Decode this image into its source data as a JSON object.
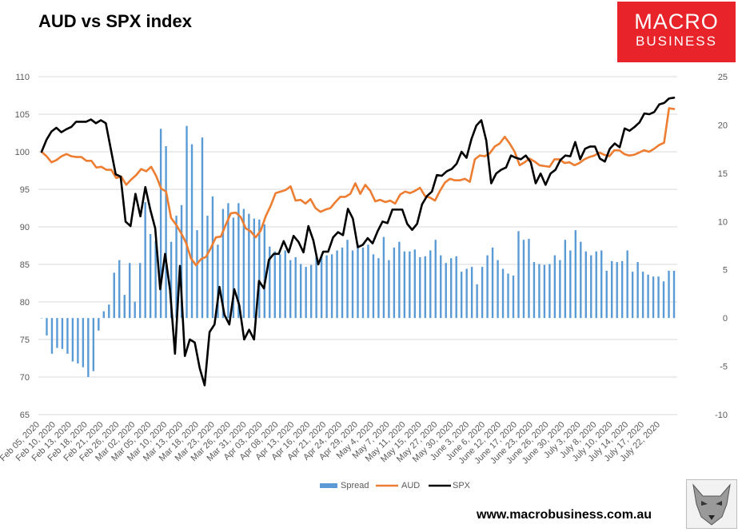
{
  "chart_data": {
    "type": "bar+line",
    "title": "AUD vs SPX index",
    "left_axis": {
      "min": 65,
      "max": 110,
      "ticks": [
        65,
        70,
        75,
        80,
        85,
        90,
        95,
        100,
        105,
        110
      ]
    },
    "right_axis": {
      "min": -10,
      "max": 25,
      "ticks": [
        -10,
        -5,
        0,
        5,
        10,
        15,
        20,
        25
      ]
    },
    "x_tick_labels": [
      "Feb 05, 2020",
      "Feb 10, 2020",
      "Feb 13, 2020",
      "Feb 18, 2020",
      "Feb 21, 2020",
      "Feb 26, 2020",
      "Mar 02, 2020",
      "Mar 05, 2020",
      "Mar 10, 2020",
      "Mar 13, 2020",
      "Mar 18, 2020",
      "Mar 23, 2020",
      "Mar 26, 2020",
      "Mar 31, 2020",
      "Apr 03, 2020",
      "Apr 08, 2020",
      "Apr 13, 2020",
      "Apr 16, 2020",
      "Apr 21, 2020",
      "Apr 24, 2020",
      "Apr 29, 2020",
      "May 4, 2020",
      "May 7, 2020",
      "May 11, 2020",
      "May 15, 2020",
      "May 27, 2020",
      "May 30, 2020",
      "June 3, 2020",
      "June 6, 2020",
      "June 12, 2020",
      "June 17, 2020",
      "June 23, 2020",
      "June 26, 2020",
      "June 30, 2020",
      "July 3, 2020",
      "July 8, 2020",
      "July 10, 2020",
      "July 14, 2020",
      "July 17, 2020",
      "July 22, 2020"
    ],
    "legend": [
      "Spread",
      "AUD",
      "SPX"
    ],
    "legend_position": "bottom",
    "series": [
      {
        "name": "Spread",
        "type": "bar",
        "axis": "right",
        "color": "#5b9bd5",
        "values": [
          0,
          -1.8,
          -3.7,
          -3.1,
          -3.2,
          -3.7,
          -4.5,
          -4.7,
          -5.1,
          -6.1,
          -5.5,
          -1.3,
          0.7,
          1.4,
          4.7,
          6.0,
          2.4,
          5.7,
          1.7,
          5.7,
          12.0,
          8.7,
          8.0,
          19.6,
          17.8,
          7.9,
          10.6,
          11.7,
          19.9,
          18.0,
          9.1,
          18.7,
          10.6,
          12.6,
          7.6,
          11.3,
          11.9,
          10.4,
          11.9,
          11.3,
          10.8,
          10.3,
          10.2,
          9.7,
          7.4,
          6.9,
          6.6,
          7.0,
          6.0,
          6.3,
          5.6,
          5.3,
          5.5,
          6.5,
          6.4,
          6.5,
          6.6,
          7.0,
          7.3,
          8.1,
          7.0,
          7.7,
          7.3,
          7.6,
          6.6,
          6.2,
          8.4,
          6.0,
          7.3,
          7.9,
          6.9,
          6.9,
          7.1,
          6.3,
          6.4,
          7.0,
          8.1,
          6.5,
          5.7,
          6.2,
          6.4,
          4.8,
          5.1,
          5.3,
          3.5,
          5.3,
          6.5,
          7.3,
          6.0,
          5.1,
          4.6,
          4.4,
          9.0,
          8.1,
          8.2,
          5.8,
          5.6,
          5.5,
          5.6,
          6.5,
          6.0,
          8.1,
          7.0,
          9.1,
          7.9,
          6.9,
          6.5,
          6.9,
          7.0,
          4.9,
          5.9,
          5.8,
          5.9,
          7.0,
          4.8,
          5.8,
          4.8,
          4.5,
          4.3,
          4.3,
          3.8,
          4.9,
          4.9
        ]
      },
      {
        "name": "AUD",
        "type": "line",
        "axis": "left",
        "color": "#ed7d31",
        "values": [
          100,
          99.4,
          98.6,
          98.9,
          99.4,
          99.7,
          99.4,
          99.3,
          99.3,
          98.8,
          98.8,
          97.9,
          98.0,
          97.6,
          97.6,
          96.5,
          96.7,
          95.6,
          96.3,
          96.9,
          97.7,
          97.4,
          98.0,
          96.8,
          95.1,
          94.7,
          91.2,
          90.3,
          89.2,
          87.9,
          85.8,
          84.9,
          85.7,
          86.0,
          87.2,
          88.6,
          88.7,
          90.3,
          91.8,
          91.9,
          91.3,
          89.8,
          89.4,
          88.6,
          89.5,
          91.4,
          92.8,
          94.5,
          94.7,
          94.9,
          95.4,
          93.5,
          93.6,
          93.1,
          93.7,
          92.5,
          92.0,
          92.3,
          92.5,
          93.3,
          94.0,
          94.0,
          94.4,
          95.8,
          94.4,
          95.6,
          94.8,
          93.4,
          93.6,
          93.3,
          93.5,
          93.1,
          94.3,
          94.7,
          94.5,
          94.8,
          95.2,
          94.1,
          93.9,
          93.5,
          94.8,
          95.9,
          96.4,
          96.2,
          96.2,
          96.4,
          96.0,
          99.0,
          99.5,
          99.4,
          99.8,
          100.7,
          101.1,
          102.0,
          101.1,
          100.0,
          98.2,
          98.6,
          99.1,
          98.7,
          98.2,
          98.1,
          98.0,
          99.0,
          99.0,
          98.5,
          98.6,
          98.2,
          98.5,
          99.0,
          99.3,
          99.5,
          99.9,
          99.6,
          99.4,
          100.2,
          100.2,
          99.7,
          99.5,
          99.6,
          99.9,
          100.2,
          100.0,
          100.4,
          100.9,
          101.2,
          105.8,
          105.7
        ]
      },
      {
        "name": "SPX",
        "type": "line",
        "axis": "left",
        "color": "#000000",
        "values": [
          100,
          101.6,
          102.7,
          103.2,
          102.6,
          103.0,
          103.3,
          104.0,
          104.0,
          104.0,
          104.3,
          103.8,
          104.2,
          103.8,
          100.4,
          97.0,
          96.7,
          90.7,
          90.1,
          94.4,
          91.4,
          95.3,
          92.3,
          89.8,
          81.7,
          86.4,
          81.6,
          73.1,
          84.8,
          72.8,
          75.0,
          74.6,
          71.2,
          68.9,
          76.0,
          77.0,
          82.0,
          78.3,
          77.0,
          81.7,
          79.6,
          75.0,
          76.3,
          75.0,
          82.8,
          81.8,
          85.6,
          86.4,
          86.4,
          88.1,
          86.6,
          88.8,
          88.0,
          86.6,
          90.1,
          88.2,
          85.0,
          86.7,
          86.7,
          88.6,
          89.3,
          88.9,
          92.4,
          91.1,
          87.3,
          87.6,
          88.5,
          87.8,
          89.4,
          90.7,
          90.5,
          92.3,
          92.3,
          92.3,
          90.4,
          89.6,
          90.4,
          93.0,
          94.1,
          94.7,
          96.9,
          96.8,
          97.4,
          97.7,
          98.4,
          100.0,
          99.2,
          101.7,
          103.5,
          104.2,
          101.5,
          95.8,
          97.1,
          97.6,
          97.9,
          99.5,
          99.2,
          99.0,
          99.5,
          98.6,
          95.8,
          97.1,
          95.6,
          97.1,
          97.6,
          98.9,
          99.5,
          99.4,
          101.3,
          99.0,
          100.4,
          100.7,
          100.7,
          99.1,
          98.7,
          100.4,
          101.1,
          100.6,
          103.1,
          102.8,
          103.3,
          103.9,
          105.1,
          105.0,
          105.3,
          106.3,
          106.5,
          107.1,
          107.2
        ]
      }
    ]
  },
  "header": {
    "title": "AUD vs SPX index"
  },
  "logo": {
    "line1": "MACRO",
    "line2": "BUSINESS"
  },
  "footer": {
    "url": "www.macrobusiness.com.au"
  }
}
